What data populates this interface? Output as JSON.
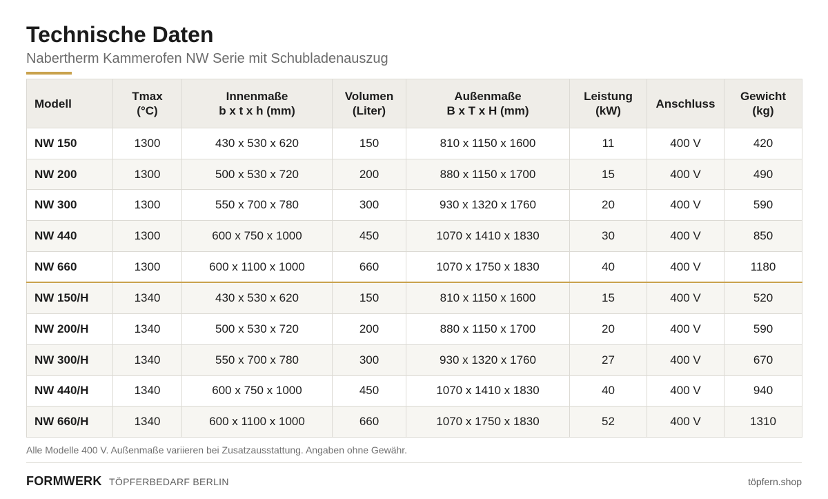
{
  "header": {
    "title": "Technische Daten",
    "subtitle": "Nabertherm Kammerofen NW Serie mit Schubladenauszug",
    "accent_color": "#c9a24d"
  },
  "table": {
    "columns": [
      {
        "line1": "Modell",
        "line2": ""
      },
      {
        "line1": "Tmax",
        "line2": "(°C)"
      },
      {
        "line1": "Innenmaße",
        "line2": "b x t x h (mm)"
      },
      {
        "line1": "Volumen",
        "line2": "(Liter)"
      },
      {
        "line1": "Außenmaße",
        "line2": "B x T x H (mm)"
      },
      {
        "line1": "Leistung",
        "line2": "(kW)"
      },
      {
        "line1": "Anschluss",
        "line2": ""
      },
      {
        "line1": "Gewicht",
        "line2": "(kg)"
      }
    ],
    "rows": [
      {
        "model": "NW 150",
        "tmax": "1300",
        "inner": "430 x 530 x 620",
        "volume": "150",
        "outer": "810 x 1150 x 1600",
        "power": "11",
        "connection": "400 V",
        "weight": "420"
      },
      {
        "model": "NW 200",
        "tmax": "1300",
        "inner": "500 x 530 x 720",
        "volume": "200",
        "outer": "880 x 1150 x 1700",
        "power": "15",
        "connection": "400 V",
        "weight": "490"
      },
      {
        "model": "NW 300",
        "tmax": "1300",
        "inner": "550 x 700 x 780",
        "volume": "300",
        "outer": "930 x 1320 x 1760",
        "power": "20",
        "connection": "400 V",
        "weight": "590"
      },
      {
        "model": "NW 440",
        "tmax": "1300",
        "inner": "600 x 750 x 1000",
        "volume": "450",
        "outer": "1070 x 1410 x 1830",
        "power": "30",
        "connection": "400 V",
        "weight": "850"
      },
      {
        "model": "NW 660",
        "tmax": "1300",
        "inner": "600 x 1100 x 1000",
        "volume": "660",
        "outer": "1070 x 1750 x 1830",
        "power": "40",
        "connection": "400 V",
        "weight": "1180"
      },
      {
        "model": "NW 150/H",
        "tmax": "1340",
        "inner": "430 x 530 x 620",
        "volume": "150",
        "outer": "810 x 1150 x 1600",
        "power": "15",
        "connection": "400 V",
        "weight": "520"
      },
      {
        "model": "NW 200/H",
        "tmax": "1340",
        "inner": "500 x 530 x 720",
        "volume": "200",
        "outer": "880 x 1150 x 1700",
        "power": "20",
        "connection": "400 V",
        "weight": "590"
      },
      {
        "model": "NW 300/H",
        "tmax": "1340",
        "inner": "550 x 700 x 780",
        "volume": "300",
        "outer": "930 x 1320 x 1760",
        "power": "27",
        "connection": "400 V",
        "weight": "670"
      },
      {
        "model": "NW 440/H",
        "tmax": "1340",
        "inner": "600 x 750 x 1000",
        "volume": "450",
        "outer": "1070 x 1410 x 1830",
        "power": "40",
        "connection": "400 V",
        "weight": "940"
      },
      {
        "model": "NW 660/H",
        "tmax": "1340",
        "inner": "600 x 1100 x 1000",
        "volume": "660",
        "outer": "1070 x 1750 x 1830",
        "power": "52",
        "connection": "400 V",
        "weight": "1310"
      }
    ]
  },
  "note": "Alle Modelle 400 V.  Außenmaße variieren bei Zusatzausstattung.  Angaben ohne Gewähr.",
  "footer": {
    "brand": "FORMWERK",
    "tagline": "TÖPFERBEDARF BERLIN",
    "site": "töpfern.shop"
  }
}
